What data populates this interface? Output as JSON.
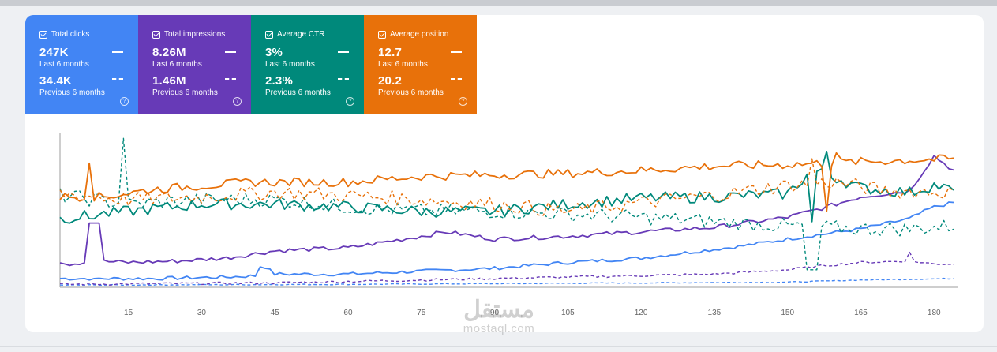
{
  "metric_cards": [
    {
      "title": "Total clicks",
      "value": "247K",
      "period": "Last 6 months",
      "prev_value": "34.4K",
      "prev_period": "Previous 6 months",
      "color": "#4285f4",
      "help": "?"
    },
    {
      "title": "Total impressions",
      "value": "8.26M",
      "period": "Last 6 months",
      "prev_value": "1.46M",
      "prev_period": "Previous 6 months",
      "color": "#673ab7",
      "help": "?"
    },
    {
      "title": "Average CTR",
      "value": "3%",
      "period": "Last 6 months",
      "prev_value": "2.3%",
      "prev_period": "Previous 6 months",
      "color": "#00897b",
      "help": "?"
    },
    {
      "title": "Average position",
      "value": "12.7",
      "period": "Last 6 months",
      "prev_value": "20.2",
      "prev_period": "Previous 6 months",
      "color": "#e8710a",
      "help": "?"
    }
  ],
  "watermark": {
    "arabic": "مستقل",
    "latin": "mostaql.com"
  },
  "chart_data": {
    "type": "line",
    "x_ticks": [
      "15",
      "30",
      "45",
      "60",
      "75",
      "90",
      "105",
      "120",
      "135",
      "150",
      "165",
      "180"
    ],
    "x_range": [
      1,
      184
    ],
    "ylim": [
      0,
      100
    ],
    "series": [
      {
        "name": "Total clicks",
        "style": "solid",
        "color": "#4285f4",
        "anchors": [
          [
            1,
            6
          ],
          [
            20,
            6
          ],
          [
            35,
            7
          ],
          [
            42,
            8
          ],
          [
            43,
            14
          ],
          [
            45,
            9
          ],
          [
            60,
            9
          ],
          [
            75,
            11
          ],
          [
            90,
            13
          ],
          [
            105,
            17
          ],
          [
            120,
            20
          ],
          [
            135,
            26
          ],
          [
            140,
            28
          ],
          [
            150,
            33
          ],
          [
            165,
            40
          ],
          [
            175,
            47
          ],
          [
            178,
            52
          ],
          [
            180,
            55
          ],
          [
            184,
            58
          ]
        ],
        "noise": 1.2,
        "spikes": [
          [
            8,
            6
          ],
          [
            42,
            14
          ]
        ]
      },
      {
        "name": "Total clicks",
        "style": "dashed",
        "color": "#4285f4",
        "anchors": [
          [
            1,
            1.5
          ],
          [
            60,
            2
          ],
          [
            120,
            3
          ],
          [
            150,
            3.5
          ],
          [
            165,
            5
          ],
          [
            184,
            6
          ]
        ],
        "noise": 0.3,
        "spikes": []
      },
      {
        "name": "Total impressions",
        "style": "solid",
        "color": "#673ab7",
        "anchors": [
          [
            1,
            18
          ],
          [
            3,
            16
          ],
          [
            8,
            18
          ],
          [
            15,
            17
          ],
          [
            25,
            18
          ],
          [
            35,
            20
          ],
          [
            45,
            25
          ],
          [
            60,
            27
          ],
          [
            75,
            35
          ],
          [
            80,
            38
          ],
          [
            90,
            33
          ],
          [
            105,
            35
          ],
          [
            120,
            38
          ],
          [
            135,
            41
          ],
          [
            150,
            48
          ],
          [
            158,
            55
          ],
          [
            165,
            62
          ],
          [
            175,
            66
          ],
          [
            180,
            90
          ],
          [
            184,
            80
          ]
        ],
        "noise": 1.5,
        "spikes": [
          [
            7,
            44
          ],
          [
            8,
            44
          ],
          [
            9,
            44
          ]
        ]
      },
      {
        "name": "Total impressions",
        "style": "dashed",
        "color": "#673ab7",
        "anchors": [
          [
            1,
            2
          ],
          [
            45,
            3
          ],
          [
            75,
            5
          ],
          [
            90,
            6
          ],
          [
            120,
            8
          ],
          [
            135,
            9
          ],
          [
            150,
            12
          ],
          [
            158,
            15
          ],
          [
            165,
            17
          ],
          [
            175,
            18
          ],
          [
            180,
            16
          ],
          [
            184,
            16
          ]
        ],
        "noise": 0.8,
        "spikes": [
          [
            175,
            24
          ]
        ]
      },
      {
        "name": "Average CTR",
        "style": "solid",
        "color": "#00897b",
        "anchors": [
          [
            1,
            47
          ],
          [
            15,
            52
          ],
          [
            30,
            57
          ],
          [
            45,
            57
          ],
          [
            60,
            55
          ],
          [
            75,
            52
          ],
          [
            90,
            52
          ],
          [
            105,
            57
          ],
          [
            120,
            61
          ],
          [
            135,
            62
          ],
          [
            150,
            64
          ],
          [
            155,
            80
          ],
          [
            160,
            75
          ],
          [
            165,
            68
          ],
          [
            175,
            65
          ],
          [
            180,
            70
          ],
          [
            184,
            66
          ]
        ],
        "noise": 4,
        "spikes": [
          [
            7,
            47
          ],
          [
            158,
            93
          ],
          [
            155,
            45
          ]
        ]
      },
      {
        "name": "Average CTR",
        "style": "dashed",
        "color": "#00897b",
        "anchors": [
          [
            1,
            63
          ],
          [
            15,
            57
          ],
          [
            30,
            60
          ],
          [
            45,
            60
          ],
          [
            60,
            55
          ],
          [
            75,
            52
          ],
          [
            90,
            52
          ],
          [
            105,
            50
          ],
          [
            120,
            48
          ],
          [
            135,
            45
          ],
          [
            150,
            42
          ],
          [
            165,
            40
          ],
          [
            175,
            40
          ],
          [
            184,
            42
          ]
        ],
        "noise": 5,
        "spikes": [
          [
            14,
            102
          ],
          [
            155,
            12
          ],
          [
            156,
            12
          ],
          [
            154,
            12
          ]
        ]
      },
      {
        "name": "Average position",
        "style": "solid",
        "color": "#e8710a",
        "anchors": [
          [
            1,
            62
          ],
          [
            10,
            62
          ],
          [
            20,
            67
          ],
          [
            40,
            72
          ],
          [
            60,
            72
          ],
          [
            75,
            76
          ],
          [
            90,
            77
          ],
          [
            105,
            78
          ],
          [
            120,
            80
          ],
          [
            135,
            83
          ],
          [
            150,
            84
          ],
          [
            165,
            86
          ],
          [
            175,
            87
          ],
          [
            184,
            88
          ]
        ],
        "noise": 3,
        "spikes": [
          [
            7,
            85
          ],
          [
            160,
            92
          ],
          [
            158,
            52
          ]
        ]
      },
      {
        "name": "Average position",
        "style": "dashed",
        "color": "#e8710a",
        "anchors": [
          [
            1,
            64
          ],
          [
            15,
            60
          ],
          [
            30,
            62
          ],
          [
            45,
            65
          ],
          [
            60,
            63
          ],
          [
            75,
            60
          ],
          [
            90,
            57
          ],
          [
            105,
            52
          ],
          [
            120,
            58
          ],
          [
            135,
            63
          ],
          [
            150,
            70
          ],
          [
            160,
            72
          ],
          [
            170,
            66
          ],
          [
            184,
            65
          ]
        ],
        "noise": 5,
        "spikes": [
          [
            155,
            88
          ]
        ]
      }
    ]
  }
}
